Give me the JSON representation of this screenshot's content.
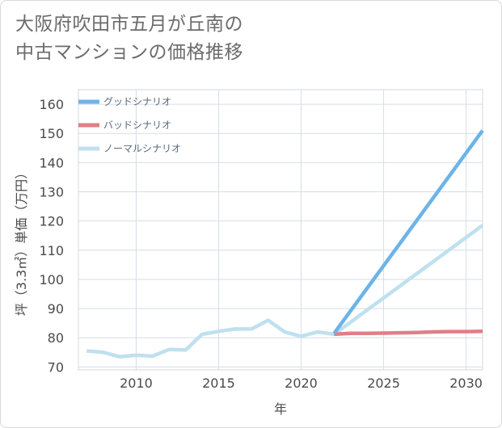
{
  "title_lines": [
    "大阪府吹田市五月が丘南の",
    "中古マンションの価格推移"
  ],
  "chart_data": {
    "type": "line",
    "title": "大阪府吹田市五月が丘南の中古マンションの価格推移",
    "xlabel": "年",
    "ylabel": "坪（3.3㎡）単価（万円）",
    "xlim": [
      2006.5,
      2031
    ],
    "ylim": [
      69,
      165
    ],
    "xticks": [
      2010,
      2015,
      2020,
      2025,
      2030
    ],
    "yticks": [
      70,
      80,
      90,
      100,
      110,
      120,
      130,
      140,
      150,
      160
    ],
    "grid": true,
    "legend_position": "top-left",
    "series": [
      {
        "name": "グッドシナリオ",
        "color": "#6cb4e8",
        "x": [
          2022,
          2031
        ],
        "values": [
          81.5,
          151
        ]
      },
      {
        "name": "バッドシナリオ",
        "color": "#e07f86",
        "x": [
          2022,
          2023,
          2024,
          2025,
          2026,
          2027,
          2028,
          2029,
          2030,
          2031
        ],
        "values": [
          81.2,
          81.5,
          81.5,
          81.6,
          81.7,
          81.8,
          82.0,
          82.1,
          82.1,
          82.2
        ]
      },
      {
        "name": "ノーマルシナリオ",
        "color": "#bfe0ef",
        "x": [
          2007,
          2008,
          2009,
          2010,
          2011,
          2012,
          2013,
          2014,
          2015,
          2016,
          2017,
          2018,
          2019,
          2020,
          2021,
          2022,
          2031
        ],
        "values": [
          75.5,
          75.0,
          73.5,
          74.0,
          73.7,
          76.0,
          75.8,
          81.2,
          82.2,
          83.0,
          83.0,
          86.0,
          82.0,
          80.5,
          82.0,
          81.2,
          118.5
        ]
      }
    ]
  }
}
